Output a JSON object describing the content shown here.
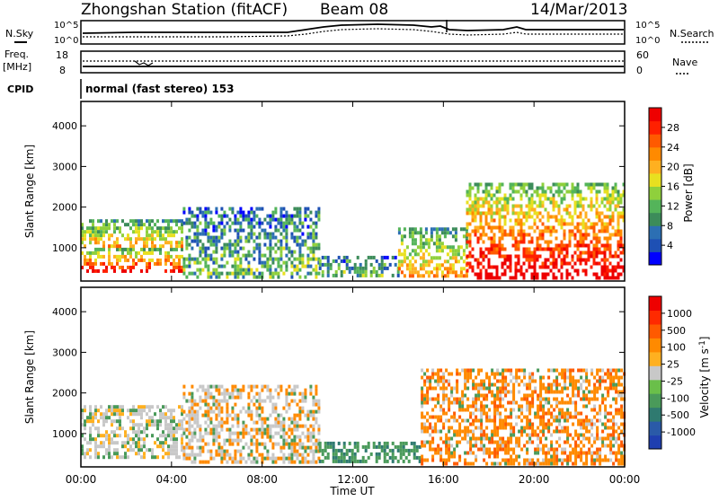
{
  "header": {
    "station": "Zhongshan Station (fitACF)",
    "beam": "Beam 08",
    "date": "14/Mar/2013"
  },
  "top_panels": {
    "noise": {
      "left_label": "N.Sky",
      "right_label": "N.Search",
      "ticks": [
        "10^5",
        "10^0"
      ]
    },
    "freq": {
      "left_label_1": "Freq.",
      "left_label_2": "[MHz]",
      "right_label": "Nave",
      "left_ticks": [
        "18",
        "8"
      ],
      "right_ticks": [
        "60",
        "0"
      ]
    },
    "cpid": {
      "label": "CPID",
      "value": "normal (fast stereo) 153"
    }
  },
  "chart_data": [
    {
      "type": "heatmap",
      "title": "",
      "xlabel": "Time UT",
      "ylabel": "Slant Range [km]",
      "x_ticks": [
        "00:00",
        "04:00",
        "08:00",
        "12:00",
        "16:00",
        "20:00",
        "00:00"
      ],
      "xlim": [
        0,
        24
      ],
      "ylim": [
        180,
        4600
      ],
      "y_ticks": [
        1000,
        2000,
        3000,
        4000
      ],
      "colorbar": {
        "label": "Power [dB]",
        "ticks": [
          "4",
          "8",
          "12",
          "16",
          "20",
          "24",
          "28"
        ],
        "colors": [
          "#0000ff",
          "#1e50b4",
          "#2c6fb3",
          "#3c8c5a",
          "#54b45a",
          "#8fd03c",
          "#e8e020",
          "#ffb020",
          "#ff8a00",
          "#ff5a00",
          "#ff2000",
          "#ee0000"
        ]
      },
      "description_blocks": [
        {
          "t0": 0.0,
          "t1": 4.5,
          "r0": 400,
          "r1": 1000,
          "level": "high"
        },
        {
          "t0": 0.0,
          "t1": 4.5,
          "r0": 1000,
          "r1": 1700,
          "level": "medium"
        },
        {
          "t0": 4.5,
          "t1": 10.5,
          "r0": 300,
          "r1": 2000,
          "level": "low"
        },
        {
          "t0": 10.5,
          "t1": 14.0,
          "r0": 300,
          "r1": 800,
          "level": "low"
        },
        {
          "t0": 14.0,
          "t1": 17.0,
          "r0": 300,
          "r1": 1500,
          "level": "medium"
        },
        {
          "t0": 17.0,
          "t1": 24.0,
          "r0": 300,
          "r1": 2600,
          "level": "high"
        }
      ]
    },
    {
      "type": "heatmap",
      "title": "",
      "xlabel": "Time UT",
      "ylabel": "Slant Range [km]",
      "x_ticks": [
        "00:00",
        "04:00",
        "08:00",
        "12:00",
        "16:00",
        "20:00",
        "00:00"
      ],
      "xlim": [
        0,
        24
      ],
      "ylim": [
        180,
        4600
      ],
      "y_ticks": [
        1000,
        2000,
        3000,
        4000
      ],
      "colorbar": {
        "label": "Velocity [m s^-1]",
        "ticks": [
          "1000",
          "500",
          "100",
          "25",
          "-25",
          "-100",
          "-500",
          "-1000"
        ],
        "colors": [
          "#1f3fb0",
          "#2a5aa8",
          "#2f7a70",
          "#4a9a5a",
          "#6abf4a",
          "#c8c8c8",
          "#ffb020",
          "#ff8a00",
          "#ff5a00",
          "#ff2a00",
          "#ee0000"
        ]
      },
      "description_blocks": [
        {
          "t0": 0.0,
          "t1": 4.5,
          "r0": 400,
          "r1": 1700,
          "level": "mixed-gray-green"
        },
        {
          "t0": 4.5,
          "t1": 10.5,
          "r0": 300,
          "r1": 2200,
          "level": "gray-orange"
        },
        {
          "t0": 10.5,
          "t1": 15.0,
          "r0": 300,
          "r1": 800,
          "level": "green"
        },
        {
          "t0": 15.0,
          "t1": 24.0,
          "r0": 300,
          "r1": 2600,
          "level": "orange-gray"
        }
      ]
    }
  ]
}
